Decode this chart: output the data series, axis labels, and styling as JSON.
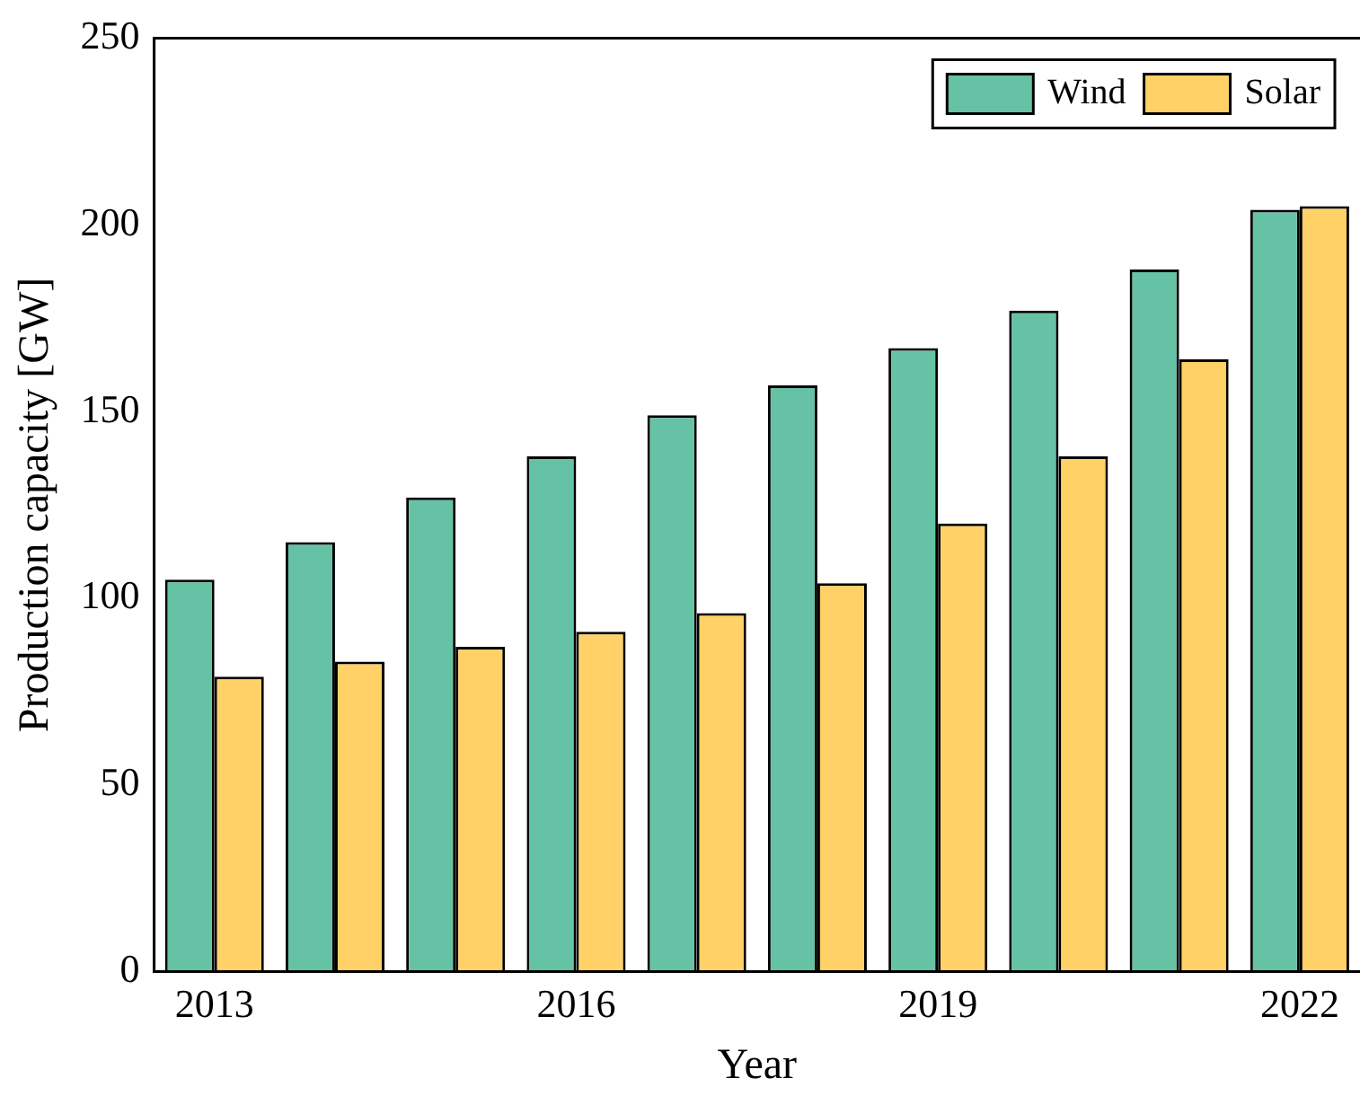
{
  "chart_data": {
    "type": "bar",
    "xlabel": "Year",
    "ylabel": "Production capacity [GW]",
    "categories": [
      "2013",
      null,
      null,
      "2016",
      null,
      null,
      "2019",
      null,
      null,
      "2022"
    ],
    "series": [
      {
        "name": "Wind",
        "color": "#66c2a5",
        "values": [
          105,
          115,
          127,
          138,
          149,
          157,
          167,
          177,
          188,
          204
        ]
      },
      {
        "name": "Solar",
        "color": "#ffd166",
        "values": [
          79,
          83,
          87,
          91,
          96,
          104,
          120,
          138,
          164,
          205
        ]
      }
    ],
    "ylim": [
      0,
      250
    ],
    "yticks": [
      0,
      50,
      100,
      150,
      200,
      250
    ],
    "grid": false,
    "legend": "top right"
  }
}
